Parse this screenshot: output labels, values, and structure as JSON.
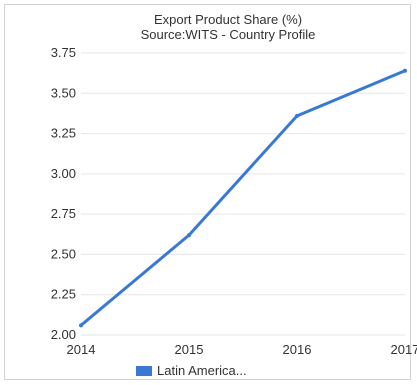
{
  "chart_data": {
    "type": "line",
    "title": "Export Product Share (%)",
    "subtitle": "Source:WITS - Country Profile",
    "x": [
      "2014",
      "2015",
      "2016",
      "2017"
    ],
    "y_ticks": [
      "2.00",
      "2.25",
      "2.50",
      "2.75",
      "3.00",
      "3.25",
      "3.50",
      "3.75"
    ],
    "ylim": [
      2.0,
      3.75
    ],
    "grid": "horizontal",
    "legend_position": "bottom",
    "series": [
      {
        "name": "Latin America...",
        "color": "#3a78d6",
        "values": [
          2.06,
          2.62,
          3.36,
          3.64
        ]
      }
    ]
  }
}
